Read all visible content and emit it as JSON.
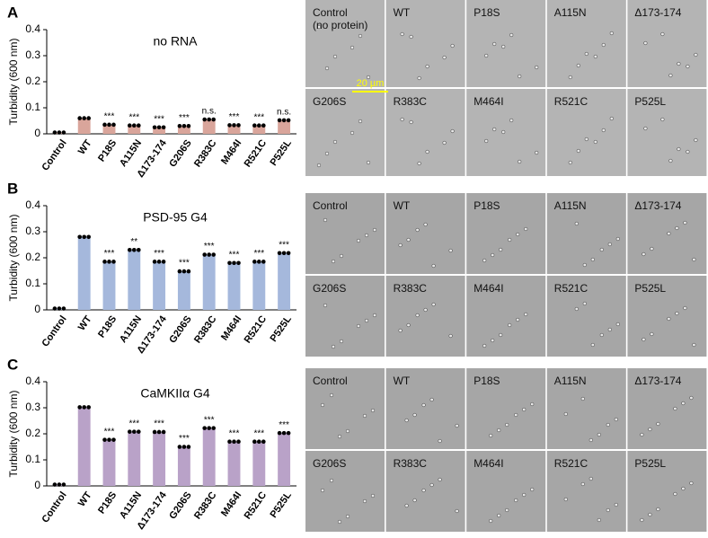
{
  "chart_data": [
    {
      "type": "bar",
      "panel": "A",
      "title": "no RNA",
      "ylabel": "Turbidity (600 nm)",
      "color": "#d9a59b",
      "categories": [
        "Control",
        "WT",
        "P18S",
        "A115N",
        "Δ173-174",
        "G206S",
        "R383C",
        "M464I",
        "R521C",
        "P525L"
      ],
      "values": [
        0.005,
        0.06,
        0.035,
        0.032,
        0.025,
        0.03,
        0.055,
        0.033,
        0.032,
        0.052
      ],
      "annotations": [
        null,
        null,
        "***",
        "***",
        "***",
        "***",
        "n.s.",
        "***",
        "***",
        "n.s."
      ],
      "ylim": [
        0,
        0.4
      ],
      "yticks": [
        0,
        0.1,
        0.2,
        0.3,
        0.4
      ]
    },
    {
      "type": "bar",
      "panel": "B",
      "title": "PSD-95 G4",
      "ylabel": "Turbidity (600 nm)",
      "color": "#a5b8dc",
      "categories": [
        "Control",
        "WT",
        "P18S",
        "A115N",
        "Δ173-174",
        "G206S",
        "R383C",
        "M464I",
        "R521C",
        "P525L"
      ],
      "values": [
        0.005,
        0.28,
        0.185,
        0.23,
        0.185,
        0.148,
        0.212,
        0.18,
        0.185,
        0.218
      ],
      "annotations": [
        null,
        null,
        "***",
        "**",
        "***",
        "***",
        "***",
        "***",
        "***",
        "***"
      ],
      "ylim": [
        0,
        0.4
      ],
      "yticks": [
        0,
        0.1,
        0.2,
        0.3,
        0.4
      ]
    },
    {
      "type": "bar",
      "panel": "C",
      "title": "CaMKIIα G4",
      "ylabel": "Turbidity (600 nm)",
      "color": "#b9a2c8",
      "categories": [
        "Control",
        "WT",
        "P18S",
        "A115N",
        "Δ173-174",
        "G206S",
        "R383C",
        "M464I",
        "R521C",
        "P525L"
      ],
      "values": [
        0.005,
        0.302,
        0.177,
        0.208,
        0.207,
        0.15,
        0.222,
        0.17,
        0.17,
        0.203
      ],
      "annotations": [
        null,
        null,
        "***",
        "***",
        "***",
        "***",
        "***",
        "***",
        "***",
        "***"
      ],
      "ylim": [
        0,
        0.4
      ],
      "yticks": [
        0,
        0.1,
        0.2,
        0.3,
        0.4
      ]
    }
  ],
  "images": [
    {
      "labels": [
        "Control",
        "WT",
        "P18S",
        "A115N",
        "Δ173-174",
        "G206S",
        "R383C",
        "M464I",
        "R521C",
        "P525L"
      ],
      "note": "(no protein)",
      "scale_bar": "20 µm"
    },
    {
      "labels": [
        "Control",
        "WT",
        "P18S",
        "A115N",
        "Δ173-174",
        "G206S",
        "R383C",
        "M464I",
        "R521C",
        "P525L"
      ]
    },
    {
      "labels": [
        "Control",
        "WT",
        "P18S",
        "A115N",
        "Δ173-174",
        "G206S",
        "R383C",
        "M464I",
        "R521C",
        "P525L"
      ]
    }
  ]
}
